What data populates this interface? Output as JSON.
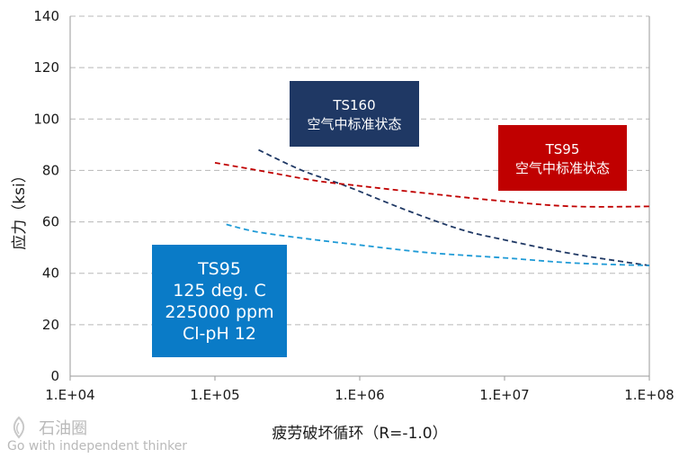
{
  "chart_data": {
    "type": "line",
    "xlabel": "疲劳破坏循环（R=-1.0）",
    "ylabel": "应力（ksi）",
    "x_scale": "log",
    "xlim": [
      10000,
      100000000
    ],
    "ylim": [
      0,
      140
    ],
    "x_ticks": [
      "1.E+04",
      "1.E+05",
      "1.E+06",
      "1.E+07",
      "1.E+08"
    ],
    "y_ticks": [
      "0",
      "20",
      "40",
      "60",
      "80",
      "100",
      "120",
      "140"
    ],
    "grid": "horizontal dashed",
    "series": [
      {
        "name": "TS160 空气中标准状态",
        "color": "#1f3864",
        "style": "dashed",
        "points": [
          [
            200000,
            88
          ],
          [
            400000,
            80
          ],
          [
            800000,
            74
          ],
          [
            2000000,
            65
          ],
          [
            5000000,
            57
          ],
          [
            10000000,
            53
          ],
          [
            30000000,
            47.5
          ],
          [
            100000000,
            43
          ]
        ]
      },
      {
        "name": "TS95 空气中标准状态",
        "color": "#c00000",
        "style": "dashed",
        "points": [
          [
            100000,
            83
          ],
          [
            200000,
            80
          ],
          [
            500000,
            76
          ],
          [
            1000000,
            74
          ],
          [
            3000000,
            71
          ],
          [
            10000000,
            68
          ],
          [
            30000000,
            66
          ],
          [
            100000000,
            66
          ]
        ]
      },
      {
        "name": "TS95 125 deg. C 225000 ppm Cl-pH 12",
        "color": "#1e9ad6",
        "style": "dashed",
        "points": [
          [
            120000,
            59
          ],
          [
            200000,
            56
          ],
          [
            500000,
            53
          ],
          [
            1000000,
            51
          ],
          [
            3000000,
            48
          ],
          [
            10000000,
            46
          ],
          [
            30000000,
            44
          ],
          [
            100000000,
            43
          ]
        ]
      }
    ],
    "annotations": [
      {
        "lines": [
          "TS160",
          "空气中标准状态"
        ],
        "fill": "#1f3864"
      },
      {
        "lines": [
          "TS95",
          "空气中标准状态"
        ],
        "fill": "#c00000"
      },
      {
        "lines": [
          "TS95",
          "125 deg. C",
          "225000 ppm",
          "Cl-pH 12"
        ],
        "fill": "#0a7bc7"
      }
    ]
  },
  "watermark": {
    "cn": "石油圈",
    "en": "Go with independent thinker"
  }
}
